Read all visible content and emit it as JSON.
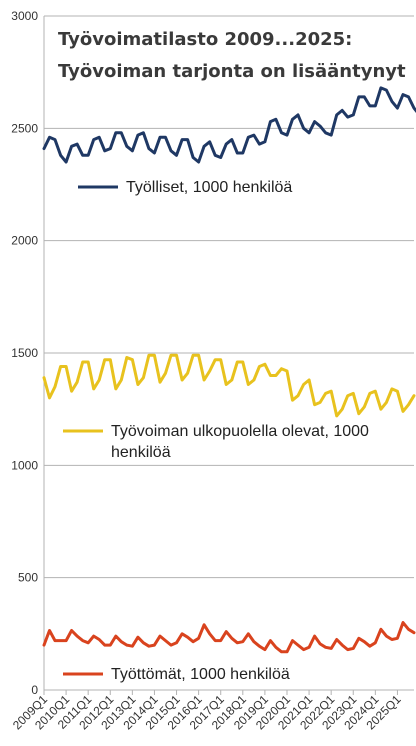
{
  "chart_data": {
    "type": "line",
    "title_line1": "Työvoimatilasto 2009...2025:",
    "title_line2": "Työvoiman tarjonta on lisääntynyt",
    "xlabel": "",
    "ylabel": "",
    "ylim": [
      0,
      3000
    ],
    "yticks": [
      "0",
      "500",
      "1000",
      "1500",
      "2000",
      "2500",
      "3000"
    ],
    "grid": true,
    "x_tick_labels": [
      "2009Q1",
      "2010Q1",
      "2011Q1",
      "2012Q1",
      "2013Q1",
      "2014Q1",
      "2015Q1",
      "2016Q1",
      "2017Q1",
      "2018Q1",
      "2019Q1",
      "2020Q1",
      "2021Q1",
      "2022Q1",
      "2023Q1",
      "2024Q1",
      "2025Q1"
    ],
    "quarters_per_year": 4,
    "series": [
      {
        "name": "Työlliset, 1000 henkilöä",
        "color": "#1f3864",
        "values": [
          2410,
          2460,
          2450,
          2380,
          2350,
          2420,
          2430,
          2380,
          2380,
          2450,
          2460,
          2400,
          2410,
          2480,
          2480,
          2420,
          2400,
          2470,
          2480,
          2410,
          2390,
          2460,
          2460,
          2400,
          2380,
          2450,
          2450,
          2370,
          2350,
          2420,
          2440,
          2380,
          2370,
          2430,
          2450,
          2390,
          2390,
          2460,
          2470,
          2430,
          2440,
          2530,
          2540,
          2480,
          2470,
          2540,
          2560,
          2500,
          2480,
          2530,
          2510,
          2480,
          2470,
          2560,
          2580,
          2550,
          2560,
          2640,
          2640,
          2600,
          2600,
          2680,
          2670,
          2620,
          2590,
          2650,
          2640,
          2590,
          2560,
          2630,
          2620,
          2580
        ]
      },
      {
        "name": "Työvoiman ulkopuolella olevat, 1000 henkilöä",
        "color": "#e8c21e",
        "values": [
          1390,
          1300,
          1350,
          1440,
          1440,
          1330,
          1370,
          1460,
          1460,
          1340,
          1380,
          1470,
          1470,
          1340,
          1380,
          1480,
          1470,
          1360,
          1390,
          1490,
          1490,
          1370,
          1410,
          1490,
          1490,
          1380,
          1410,
          1490,
          1490,
          1380,
          1420,
          1470,
          1470,
          1360,
          1380,
          1460,
          1460,
          1360,
          1380,
          1440,
          1450,
          1400,
          1400,
          1430,
          1420,
          1290,
          1310,
          1360,
          1380,
          1270,
          1280,
          1320,
          1330,
          1220,
          1250,
          1310,
          1320,
          1230,
          1260,
          1320,
          1330,
          1250,
          1280,
          1340,
          1330,
          1240,
          1270,
          1310
        ]
      },
      {
        "name": "Työttömät, 1000 henkilöä",
        "color": "#d9431e",
        "values": [
          200,
          265,
          220,
          220,
          220,
          265,
          240,
          220,
          210,
          240,
          225,
          200,
          200,
          240,
          215,
          200,
          195,
          235,
          210,
          195,
          200,
          240,
          220,
          200,
          210,
          250,
          235,
          215,
          230,
          290,
          250,
          220,
          220,
          260,
          230,
          210,
          215,
          250,
          215,
          195,
          180,
          220,
          190,
          170,
          170,
          220,
          200,
          180,
          190,
          240,
          205,
          190,
          185,
          225,
          200,
          180,
          185,
          230,
          215,
          195,
          210,
          270,
          240,
          225,
          230,
          300,
          270,
          255
        ]
      }
    ],
    "legend": [
      "Työlliset, 1000 henkilöä",
      "Työvoiman ulkopuolella olevat, 1000",
      "henkilöä",
      "Työttömät, 1000 henkilöä"
    ],
    "legend_placement": "inside"
  }
}
